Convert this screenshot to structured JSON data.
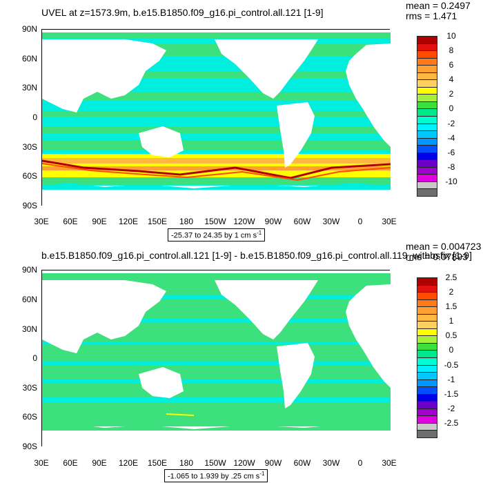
{
  "panels": [
    {
      "title": "UVEL at z=1573.9m, b.e15.B1850.f09_g16.pi_control.all.121 [1-9]",
      "mean": "mean = 0.2497",
      "rms": "rms = 1.471",
      "range_text": "-25.37 to 24.35 by 1 cm s",
      "range_unit_sup": "-1",
      "lat_labels": [
        "90N",
        "60N",
        "30N",
        "0",
        "30S",
        "60S",
        "90S"
      ],
      "lon_labels": [
        "30E",
        "60E",
        "90E",
        "120E",
        "150E",
        "180",
        "150W",
        "120W",
        "90W",
        "60W",
        "30W",
        "0",
        "30E"
      ],
      "colorbar_labels": [
        "10",
        "8",
        "6",
        "4",
        "2",
        "0",
        "-2",
        "-4",
        "-6",
        "-8",
        "-10"
      ],
      "colorbar_colors": [
        "#B00000",
        "#E41010",
        "#FF4A00",
        "#FF7A18",
        "#FFA030",
        "#FFB840",
        "#FFD060",
        "#FFFF00",
        "#A6F03C",
        "#3CE03C",
        "#00E88C",
        "#00FFD0",
        "#00F0FF",
        "#00C8FF",
        "#0096FF",
        "#0050FF",
        "#0000E6",
        "#6A00C8",
        "#A000D0",
        "#E000E0",
        "#C8C8C8",
        "#6E6E6E"
      ]
    },
    {
      "title": "b.e15.B1850.f09_g16.pi_control.all.121 [1-9] - b.e15.B1850.f09_g16.pi_control.all.119_withbsfix [1-9]",
      "mean": "mean = 0.004723",
      "rms": "rms = 0.07893",
      "range_text": "-1.065 to 1.939 by .25 cm s",
      "range_unit_sup": "-1",
      "lat_labels": [
        "90N",
        "60N",
        "30N",
        "0",
        "30S",
        "60S",
        "90S"
      ],
      "lon_labels": [
        "30E",
        "60E",
        "90E",
        "120E",
        "150E",
        "180",
        "150W",
        "120W",
        "90W",
        "60W",
        "30W",
        "0",
        "30E"
      ],
      "colorbar_labels": [
        "2.5",
        "2",
        "1.5",
        "1",
        "0.5",
        "0",
        "-0.5",
        "-1",
        "-1.5",
        "-2",
        "-2.5"
      ],
      "colorbar_colors": [
        "#B00000",
        "#E41010",
        "#FF4A00",
        "#FF7A18",
        "#FFA030",
        "#FFB840",
        "#FFD060",
        "#FFFF00",
        "#A6F03C",
        "#3CE03C",
        "#00E88C",
        "#00FFD0",
        "#00F0FF",
        "#00C8FF",
        "#0096FF",
        "#0050FF",
        "#0000E6",
        "#6A00C8",
        "#A000D0",
        "#E000E0",
        "#C8C8C8",
        "#6E6E6E"
      ]
    }
  ],
  "colors": {
    "ocean_base": "#3CE07C",
    "ocean_cyan": "#00EEDD",
    "land": "#ffffff",
    "frame": "#000000"
  }
}
